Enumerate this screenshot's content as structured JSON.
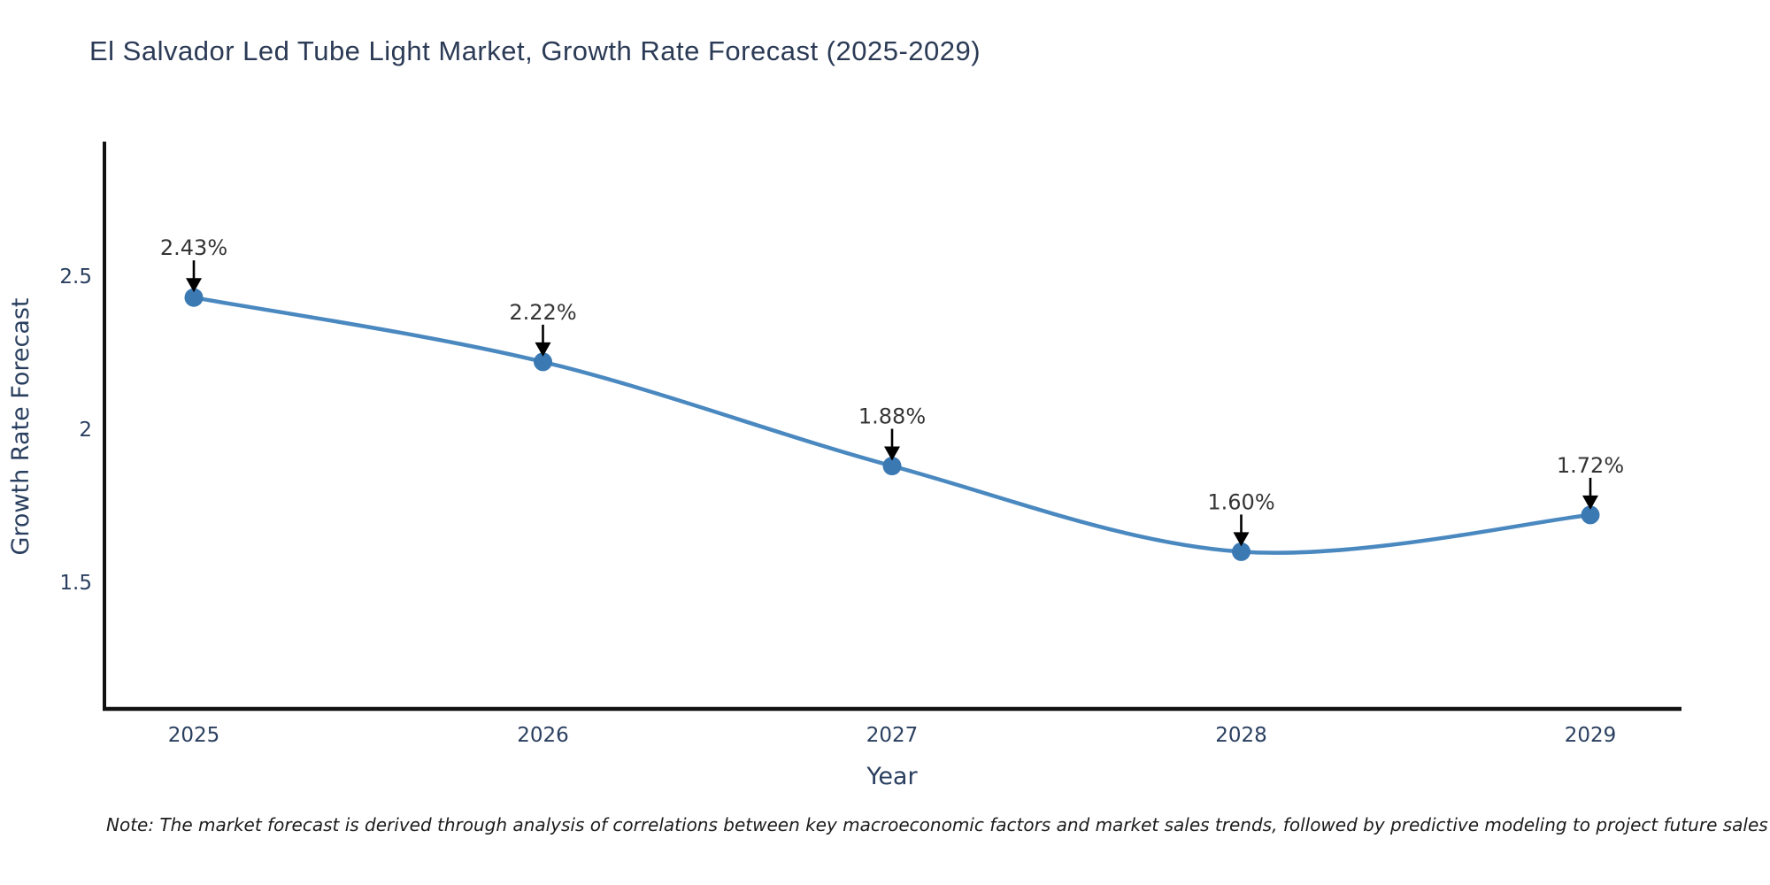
{
  "header": {
    "title": "El Salvador Led Tube Light Market, Growth Rate Forecast (2025-2029)"
  },
  "chart_data": {
    "type": "line",
    "line_shape": "spline",
    "categories": [
      "2025",
      "2026",
      "2027",
      "2028",
      "2029"
    ],
    "series": [
      {
        "name": "Growth Rate Forecast",
        "values": [
          2.43,
          2.22,
          1.88,
          1.6,
          1.72
        ]
      }
    ],
    "point_labels": [
      "2.43%",
      "2.22%",
      "1.88%",
      "1.60%",
      "1.72%"
    ],
    "title": "El Salvador Led Tube Light Market, Growth Rate Forecast (2025-2029)",
    "xlabel": "Year",
    "ylabel": "Growth Rate Forecast",
    "yticks": [
      {
        "value": 2.5,
        "label": "2.5"
      },
      {
        "value": 2.0,
        "label": "2"
      },
      {
        "value": 1.5,
        "label": "1.5"
      }
    ],
    "ylim": [
      1.09,
      2.95
    ],
    "grid": false,
    "legend_position": "none",
    "annotations_have_arrows": true,
    "colors": {
      "line": "#4a88c0",
      "marker": "#3b79b3",
      "axis": "#111111",
      "title_text": "#2b3a55",
      "tick_text": "#2a3f5f",
      "axis_label_text": "#2a3f5f",
      "annotation_text": "#353535",
      "arrow": "#000000",
      "background": "#ffffff"
    }
  },
  "note": {
    "text": "Note: The market forecast is derived through analysis of correlations between key macroeconomic factors and market sales trends, followed by predictive modeling to project future sales"
  }
}
